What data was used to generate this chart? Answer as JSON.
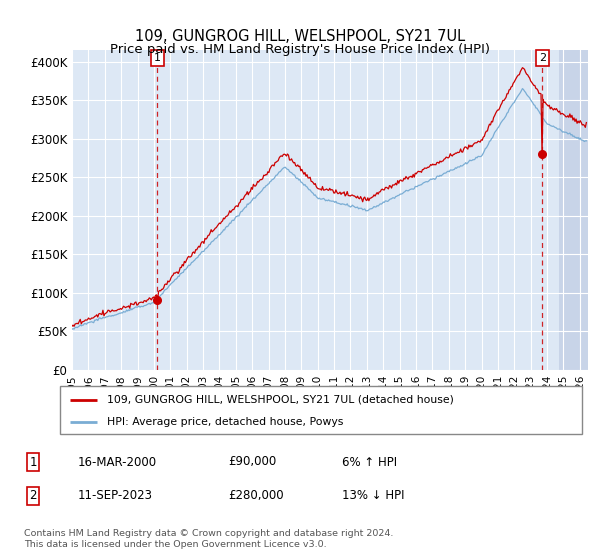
{
  "title": "109, GUNGROG HILL, WELSHPOOL, SY21 7UL",
  "subtitle": "Price paid vs. HM Land Registry's House Price Index (HPI)",
  "ylabel_ticks": [
    "£0",
    "£50K",
    "£100K",
    "£150K",
    "£200K",
    "£250K",
    "£300K",
    "£350K",
    "£400K"
  ],
  "ytick_vals": [
    0,
    50000,
    100000,
    150000,
    200000,
    250000,
    300000,
    350000,
    400000
  ],
  "ylim": [
    0,
    415000
  ],
  "xlim_start": 1995.0,
  "xlim_end": 2026.5,
  "sale1_date": 2000.21,
  "sale1_price": 90000,
  "sale2_date": 2023.71,
  "sale2_price": 280000,
  "hpi_color": "#7aadd4",
  "price_color": "#cc0000",
  "dashed_color": "#cc0000",
  "background_plot": "#dde8f5",
  "background_fig": "#ffffff",
  "grid_color": "#ffffff",
  "legend_line1": "109, GUNGROG HILL, WELSHPOOL, SY21 7UL (detached house)",
  "legend_line2": "HPI: Average price, detached house, Powys",
  "annotation1": [
    "1",
    "16-MAR-2000",
    "£90,000",
    "6% ↑ HPI"
  ],
  "annotation2": [
    "2",
    "11-SEP-2023",
    "£280,000",
    "13% ↓ HPI"
  ],
  "footnote": "Contains HM Land Registry data © Crown copyright and database right 2024.\nThis data is licensed under the Open Government Licence v3.0."
}
